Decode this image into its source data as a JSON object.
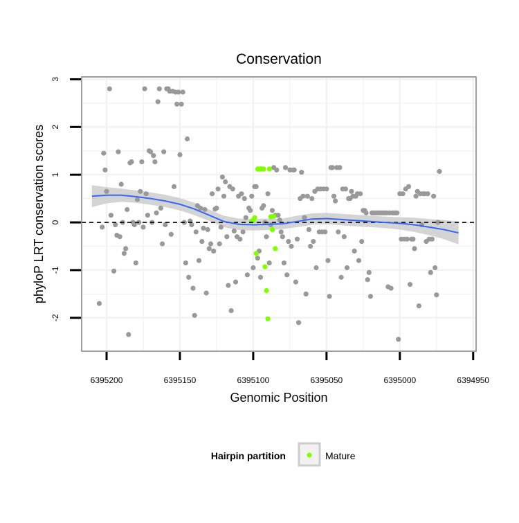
{
  "chart_data": {
    "type": "scatter",
    "title": "Conservation",
    "xlabel": "Genomic Position",
    "ylabel": "phyloP LRT conservation scores",
    "x_reversed": true,
    "xlim": [
      6395217,
      6394948
    ],
    "ylim": [
      -2.7,
      3.05
    ],
    "x_ticks": [
      6395200,
      6395150,
      6395100,
      6395050,
      6395000,
      6394950
    ],
    "x_tick_labels": [
      "6395200",
      "6395150",
      "6395100",
      "6395050",
      "6395000",
      "6394950"
    ],
    "y_ticks": [
      -2,
      -1,
      0,
      1,
      2,
      3
    ],
    "y_tick_labels": [
      "-2",
      "-1",
      "0",
      "1",
      "2",
      "3"
    ],
    "grid": true,
    "reference_line": {
      "y": 0,
      "style": "dashed",
      "color": "#000000"
    },
    "legend": {
      "title": "Hairpin partition",
      "position": "bottom",
      "entries": [
        {
          "label": "Mature",
          "color": "#7fff00"
        }
      ]
    },
    "colors": {
      "background_points": "#999999",
      "mature_points": "#7fff00",
      "smooth_line": "#3366ff",
      "confidence_band": "#cccccc",
      "panel_border": "#7f7f7f",
      "grid": "#f2f2f2"
    },
    "series": [
      {
        "name": "",
        "color": "#999999",
        "points": [
          [
            6395205,
            -1.7
          ],
          [
            6395203,
            -0.1
          ],
          [
            6395202,
            1.45
          ],
          [
            6395201,
            1.1
          ],
          [
            6395200,
            0.65
          ],
          [
            6395198,
            2.8
          ],
          [
            6395197,
            0.15
          ],
          [
            6395195,
            -1.02
          ],
          [
            6395194,
            -0.05
          ],
          [
            6395193,
            -0.27
          ],
          [
            6395192,
            1.48
          ],
          [
            6395191,
            -0.3
          ],
          [
            6395190,
            0.8
          ],
          [
            6395189,
            0
          ],
          [
            6395188,
            -0.65
          ],
          [
            6395187,
            -0.55
          ],
          [
            6395186,
            0.27
          ],
          [
            6395185,
            -2.35
          ],
          [
            6395184,
            1.25
          ],
          [
            6395183,
            1.27
          ],
          [
            6395182,
            0
          ],
          [
            6395181,
            -0.05
          ],
          [
            6395180,
            -0.85
          ],
          [
            6395179,
            0.48
          ],
          [
            6395178,
            0
          ],
          [
            6395177,
            0.65
          ],
          [
            6395176,
            1.27
          ],
          [
            6395175,
            -0.1
          ],
          [
            6395174,
            2.8
          ],
          [
            6395173,
            0.6
          ],
          [
            6395172,
            0.15
          ],
          [
            6395171,
            1.5
          ],
          [
            6395170,
            1.48
          ],
          [
            6395169,
            0
          ],
          [
            6395168,
            1.4
          ],
          [
            6395167,
            1.27
          ],
          [
            6395166,
            0.2
          ],
          [
            6395165,
            2.53
          ],
          [
            6395164,
            2.8
          ],
          [
            6395163,
            0.3
          ],
          [
            6395162,
            -0.45
          ],
          [
            6395161,
            1.48
          ],
          [
            6395160,
            -0.05
          ],
          [
            6395159,
            2.8
          ],
          [
            6395158,
            2.8
          ],
          [
            6395157,
            2.75
          ],
          [
            6395156,
            -0.25
          ],
          [
            6395155,
            2.75
          ],
          [
            6395154,
            0.75
          ],
          [
            6395153,
            2.73
          ],
          [
            6395152,
            2.48
          ],
          [
            6395151,
            2.73
          ],
          [
            6395150,
            1.42
          ],
          [
            6395149,
            2.48
          ],
          [
            6395148,
            2.73
          ],
          [
            6395147,
            0
          ],
          [
            6395146,
            -0.85
          ],
          [
            6395145,
            1.75
          ],
          [
            6395144,
            -1.15
          ],
          [
            6395143,
            0.03
          ],
          [
            6395142,
            -0.05
          ],
          [
            6395141,
            -1.38
          ],
          [
            6395140,
            -1.95
          ],
          [
            6395139,
            -0.2
          ],
          [
            6395138,
            0.35
          ],
          [
            6395137,
            -0.8
          ],
          [
            6395136,
            0.3
          ],
          [
            6395135,
            -0.4
          ],
          [
            6395134,
            -0.12
          ],
          [
            6395133,
            0.27
          ],
          [
            6395132,
            -1.48
          ],
          [
            6395131,
            -0.15
          ],
          [
            6395130,
            -0.55
          ],
          [
            6395129,
            -0.45
          ],
          [
            6395128,
            0.6
          ],
          [
            6395127,
            -0.6
          ],
          [
            6395126,
            0.28
          ],
          [
            6395125,
            0.3
          ],
          [
            6395124,
            0.7
          ],
          [
            6395123,
            -0.45
          ],
          [
            6395122,
            -0.1
          ],
          [
            6395121,
            0.95
          ],
          [
            6395120,
            0.55
          ],
          [
            6395119,
            0.85
          ],
          [
            6395118,
            -0.3
          ],
          [
            6395117,
            -1.32
          ],
          [
            6395116,
            0.75
          ],
          [
            6395115,
            -1.85
          ],
          [
            6395114,
            0.7
          ],
          [
            6395113,
            -0.18
          ],
          [
            6395112,
            -1.25
          ],
          [
            6395111,
            -0.3
          ],
          [
            6395110,
            0.55
          ],
          [
            6395109,
            -0.35
          ],
          [
            6395108,
            0.6
          ],
          [
            6395107,
            -0.2
          ],
          [
            6395106,
            0.5
          ],
          [
            6395105,
            0.1
          ],
          [
            6395104,
            -1.1
          ],
          [
            6395103,
            0.3
          ],
          [
            6395102,
            0.25
          ],
          [
            6395101,
            0.55
          ],
          [
            6395100,
            -0.95
          ],
          [
            6395099,
            0.75
          ],
          [
            6395098,
            0.75
          ],
          [
            6395097,
            -0.75
          ],
          [
            6395096,
            -0.6
          ],
          [
            6395095,
            -1.15
          ],
          [
            6395094,
            0.3
          ],
          [
            6395093,
            0.35
          ],
          [
            6395092,
            0
          ],
          [
            6395091,
            -0.3
          ],
          [
            6395090,
            0.6
          ],
          [
            6395089,
            -0.85
          ],
          [
            6395088,
            -0.05
          ],
          [
            6395087,
            0.25
          ],
          [
            6395086,
            1.15
          ],
          [
            6395085,
            0.15
          ],
          [
            6395084,
            1.1
          ],
          [
            6395083,
            0.15
          ],
          [
            6395082,
            0.05
          ],
          [
            6395081,
            -0.2
          ],
          [
            6395080,
            -0.3
          ],
          [
            6395079,
            -0.85
          ],
          [
            6395078,
            1.15
          ],
          [
            6395077,
            -1.1
          ],
          [
            6395076,
            -0.4
          ],
          [
            6395075,
            1.1
          ],
          [
            6395074,
            -0.5
          ],
          [
            6395073,
            1.1
          ],
          [
            6395072,
            1.1
          ],
          [
            6395071,
            -1.25
          ],
          [
            6395070,
            -0.35
          ],
          [
            6395069,
            -2.1
          ],
          [
            6395068,
            0.5
          ],
          [
            6395067,
            1.05
          ],
          [
            6395066,
            0.55
          ],
          [
            6395065,
            0.1
          ],
          [
            6395064,
            -1.5
          ],
          [
            6395063,
            0.55
          ],
          [
            6395062,
            -0.15
          ],
          [
            6395061,
            -0.5
          ],
          [
            6395060,
            0.5
          ],
          [
            6395059,
            -0.4
          ],
          [
            6395058,
            0.65
          ],
          [
            6395057,
            -0.95
          ],
          [
            6395056,
            0.7
          ],
          [
            6395055,
            -0.2
          ],
          [
            6395054,
            0.7
          ],
          [
            6395053,
            -0.2
          ],
          [
            6395052,
            0.7
          ],
          [
            6395051,
            -0.2
          ],
          [
            6395050,
            0.7
          ],
          [
            6395049,
            -0.8
          ],
          [
            6395048,
            -1.55
          ],
          [
            6395047,
            1.15
          ],
          [
            6395046,
            1.15
          ],
          [
            6395045,
            0.55
          ],
          [
            6395044,
            0.45
          ],
          [
            6395043,
            1.15
          ],
          [
            6395042,
            -0.2
          ],
          [
            6395041,
            1.15
          ],
          [
            6395040,
            -1.15
          ],
          [
            6395039,
            0.7
          ],
          [
            6395038,
            -0.3
          ],
          [
            6395037,
            0.7
          ],
          [
            6395036,
            -0.95
          ],
          [
            6395035,
            0.5
          ],
          [
            6395034,
            0.5
          ],
          [
            6395033,
            0.65
          ],
          [
            6395032,
            0.55
          ],
          [
            6395031,
            -0.6
          ],
          [
            6395030,
            0.55
          ],
          [
            6395029,
            0.6
          ],
          [
            6395028,
            -0.8
          ],
          [
            6395027,
            0.6
          ],
          [
            6395026,
            -0.4
          ],
          [
            6395025,
            0.25
          ],
          [
            6395024,
            0.25
          ],
          [
            6395023,
            0.2
          ],
          [
            6395022,
            -1.2
          ],
          [
            6395021,
            -1.05
          ],
          [
            6395020,
            -1.55
          ],
          [
            6395019,
            0.2
          ],
          [
            6395018,
            0.2
          ],
          [
            6395017,
            0.2
          ],
          [
            6395016,
            0.2
          ],
          [
            6395015,
            0.2
          ],
          [
            6395014,
            0.2
          ],
          [
            6395013,
            0.2
          ],
          [
            6395012,
            0.2
          ],
          [
            6395011,
            0.2
          ],
          [
            6395010,
            0.2
          ],
          [
            6395009,
            0.2
          ],
          [
            6395008,
            -1.35
          ],
          [
            6395007,
            0.2
          ],
          [
            6395006,
            -1.38
          ],
          [
            6395005,
            0.2
          ],
          [
            6395004,
            0.2
          ],
          [
            6395003,
            0.2
          ],
          [
            6395002,
            0.2
          ],
          [
            6395001,
            -2.45
          ],
          [
            6395000,
            0.6
          ],
          [
            6394999,
            -0.35
          ],
          [
            6394998,
            0.6
          ],
          [
            6394997,
            -0.35
          ],
          [
            6394996,
            0.7
          ],
          [
            6394995,
            -0.35
          ],
          [
            6394994,
            0.75
          ],
          [
            6394993,
            -1.3
          ],
          [
            6394992,
            -0.35
          ],
          [
            6394991,
            -0.35
          ],
          [
            6394990,
            -0.55
          ],
          [
            6394989,
            0.55
          ],
          [
            6394988,
            0.65
          ],
          [
            6394987,
            -1.75
          ],
          [
            6394986,
            0.6
          ],
          [
            6394985,
            -0.05
          ],
          [
            6394984,
            0.6
          ],
          [
            6394983,
            0.6
          ],
          [
            6394982,
            -0.4
          ],
          [
            6394981,
            0.6
          ],
          [
            6394980,
            -0.35
          ],
          [
            6394979,
            -1.05
          ],
          [
            6394978,
            -0.35
          ],
          [
            6394977,
            0.55
          ],
          [
            6394976,
            -0.95
          ],
          [
            6394975,
            -1.52
          ],
          [
            6394974,
            0
          ],
          [
            6394973,
            1.07
          ]
        ]
      },
      {
        "name": "Mature",
        "color": "#7fff00",
        "points": [
          [
            6395101,
            0.03
          ],
          [
            6395100,
            0.05
          ],
          [
            6395099,
            0.1
          ],
          [
            6395098,
            -0.65
          ],
          [
            6395097,
            1.12
          ],
          [
            6395096,
            1.12
          ],
          [
            6395095,
            1.12
          ],
          [
            6395094,
            1.12
          ],
          [
            6395093,
            1.12
          ],
          [
            6395092,
            -0.93
          ],
          [
            6395091,
            -1.43
          ],
          [
            6395090,
            -2.02
          ],
          [
            6395089,
            1.12
          ],
          [
            6395088,
            0.12
          ],
          [
            6395087,
            -0.15
          ],
          [
            6395086,
            0.13
          ],
          [
            6395085,
            -0.55
          ]
        ]
      }
    ],
    "smooth": {
      "method": "loess",
      "color": "#3366ff",
      "x": [
        6395210,
        6395200,
        6395190,
        6395180,
        6395170,
        6395160,
        6395150,
        6395140,
        6395130,
        6395120,
        6395110,
        6395100,
        6395090,
        6395080,
        6395070,
        6395060,
        6395050,
        6395040,
        6395030,
        6395020,
        6395010,
        6395000,
        6394990,
        6394980,
        6394970,
        6394960
      ],
      "y": [
        0.55,
        0.57,
        0.57,
        0.54,
        0.5,
        0.45,
        0.38,
        0.28,
        0.15,
        0.02,
        -0.04,
        -0.05,
        -0.04,
        -0.03,
        0.02,
        0.07,
        0.08,
        0.06,
        0.04,
        0.02,
        0.0,
        -0.02,
        -0.05,
        -0.1,
        -0.15,
        -0.22
      ],
      "lower": [
        0.32,
        0.4,
        0.43,
        0.41,
        0.37,
        0.32,
        0.25,
        0.15,
        0.03,
        -0.1,
        -0.16,
        -0.17,
        -0.16,
        -0.14,
        -0.1,
        -0.05,
        -0.04,
        -0.06,
        -0.08,
        -0.1,
        -0.12,
        -0.15,
        -0.2,
        -0.27,
        -0.35,
        -0.46
      ],
      "upper": [
        0.78,
        0.74,
        0.71,
        0.67,
        0.63,
        0.58,
        0.51,
        0.41,
        0.27,
        0.14,
        0.08,
        0.07,
        0.08,
        0.08,
        0.14,
        0.19,
        0.2,
        0.18,
        0.16,
        0.14,
        0.12,
        0.11,
        0.1,
        0.07,
        0.05,
        0.02
      ]
    }
  }
}
